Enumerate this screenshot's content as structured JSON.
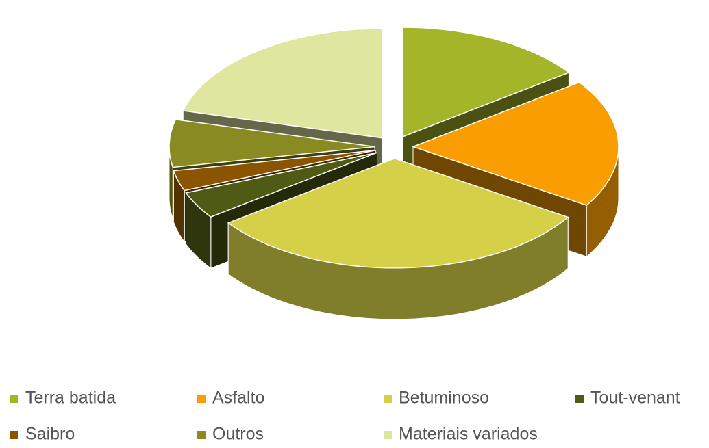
{
  "chart_data": {
    "type": "pie3d",
    "categories": [
      "Terra batida",
      "Asfalto",
      "Betuminoso",
      "Tout-venant",
      "Saibro",
      "Outros",
      "Materiais variados"
    ],
    "values": [
      15,
      19,
      31,
      4,
      3,
      7,
      21
    ],
    "colors": [
      "#a5b52a",
      "#f99d00",
      "#d6d048",
      "#4f5a15",
      "#8b5500",
      "#8a8a22",
      "#dfe6a0"
    ],
    "legend": "bottom"
  }
}
